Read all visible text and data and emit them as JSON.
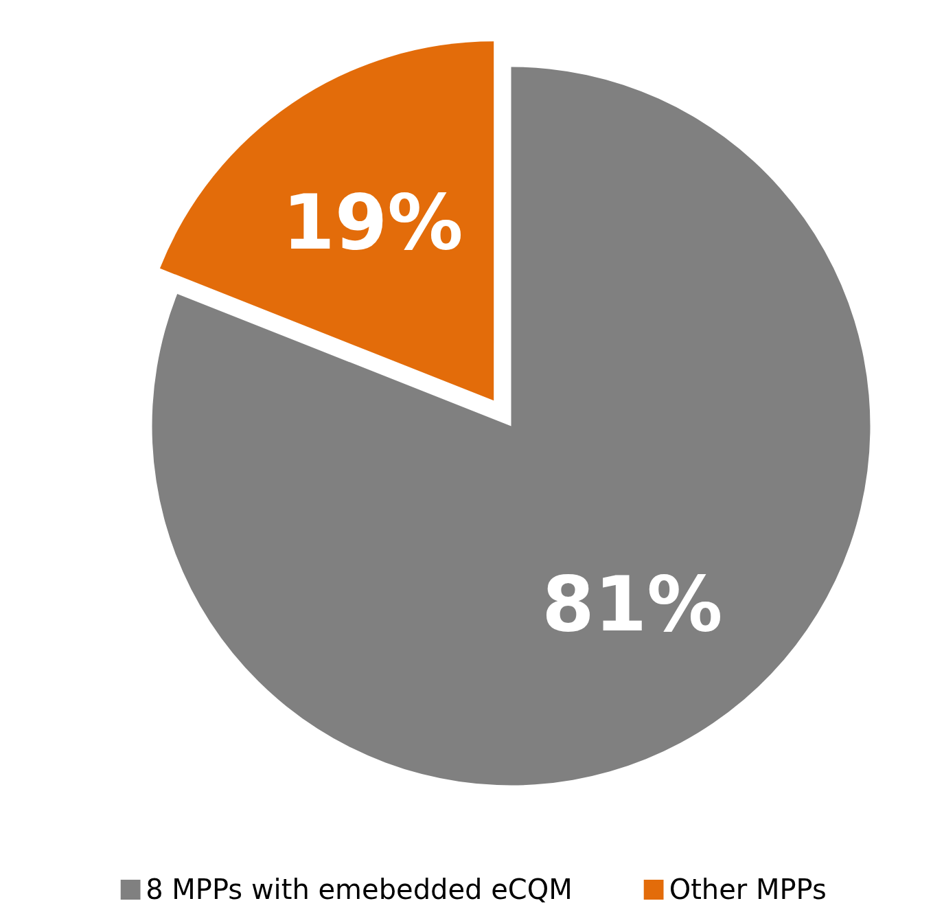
{
  "chart_data": {
    "type": "pie",
    "categories": [
      "8 MPPs with emebedded eCQM",
      "Other MPPs"
    ],
    "values": [
      81,
      19
    ],
    "colors": [
      "#808080",
      "#e36c0a"
    ],
    "value_labels": [
      "81%",
      "19%"
    ],
    "legend": "bottom"
  }
}
